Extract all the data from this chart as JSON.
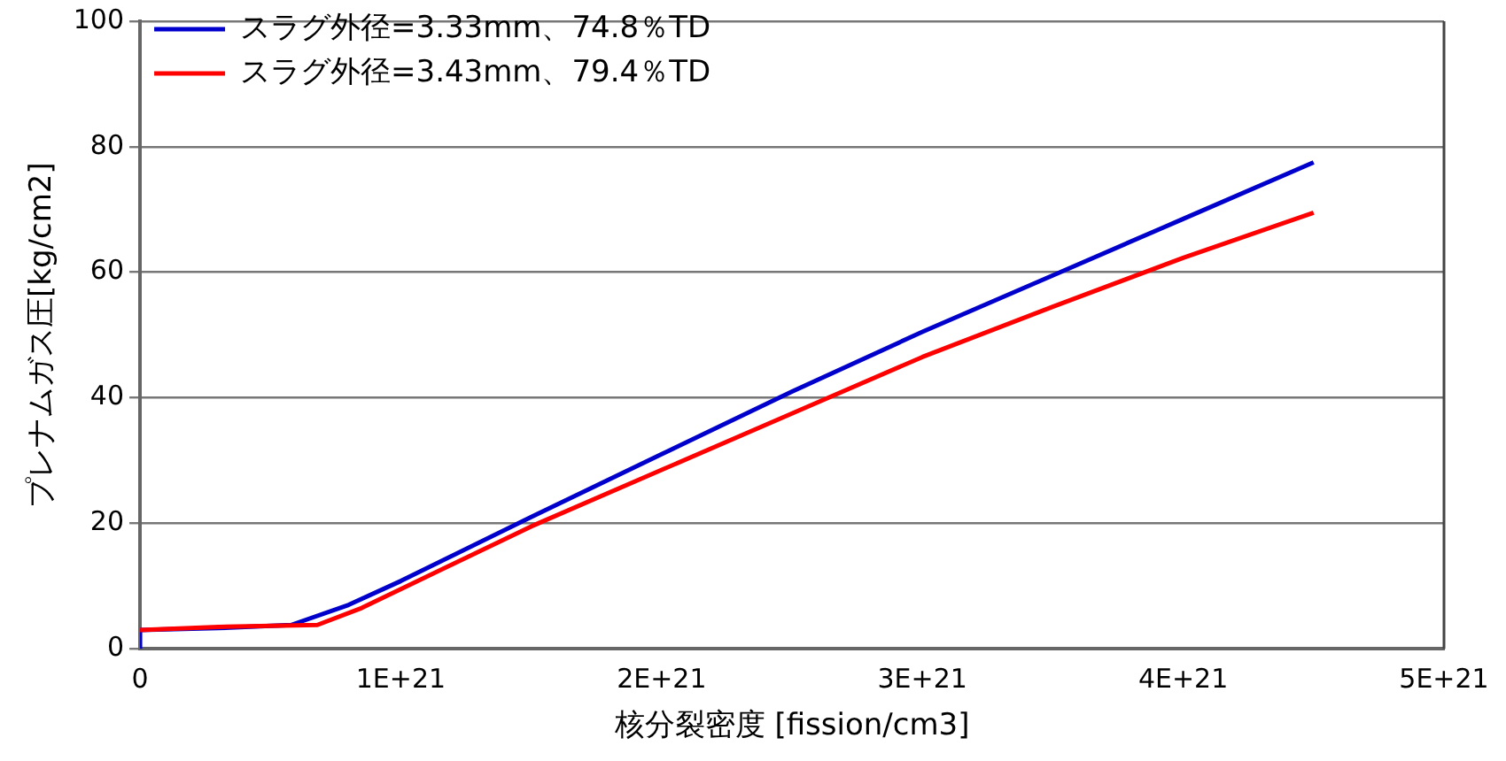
{
  "chart_data": {
    "type": "line",
    "xlabel": "核分裂密度 [fission/cm3]",
    "ylabel": "プレナムガス圧[kg/cm2]",
    "xlim": [
      0,
      5e+21
    ],
    "xticks": [
      0,
      {
        "value": 1e+21,
        "label": "1E+21"
      },
      {
        "value": 2e+21,
        "label": "2E+21"
      },
      {
        "value": 3e+21,
        "label": "3E+21"
      },
      {
        "value": 4e+21,
        "label": "4E+21"
      },
      {
        "value": 5e+21,
        "label": "5E+21"
      }
    ],
    "ylim": [
      0,
      100
    ],
    "yticks": [
      0,
      20,
      40,
      60,
      80,
      100
    ],
    "grid": "y",
    "legend": "top left",
    "marker": "none",
    "line_style": "solid",
    "series": [
      {
        "name": "スラグ外径=3.33mm、74.8％TD",
        "color": "#0000cc",
        "x": [
          0,
          0,
          3e+20,
          5.8e+20,
          8e+20,
          1e+21,
          1.5e+21,
          2e+21,
          2.5e+21,
          3e+21,
          3.5e+21,
          4e+21,
          4.5e+21
        ],
        "values": [
          0,
          3,
          3.3,
          3.8,
          7,
          10.8,
          21,
          31,
          41,
          50.5,
          59.5,
          68.5,
          77.5
        ]
      },
      {
        "name": "スラグ外径=3.43mm、79.4％TD",
        "color": "#ff0000",
        "x": [
          0,
          3e+20,
          6.8e+20,
          8.5e+20,
          1e+21,
          1.5e+21,
          2e+21,
          2.5e+21,
          3e+21,
          3.5e+21,
          4e+21,
          4.5e+21
        ],
        "values": [
          3,
          3.5,
          3.8,
          6.5,
          9.5,
          19.5,
          28.5,
          37.5,
          46.5,
          54.5,
          62.3,
          69.5
        ]
      }
    ]
  }
}
